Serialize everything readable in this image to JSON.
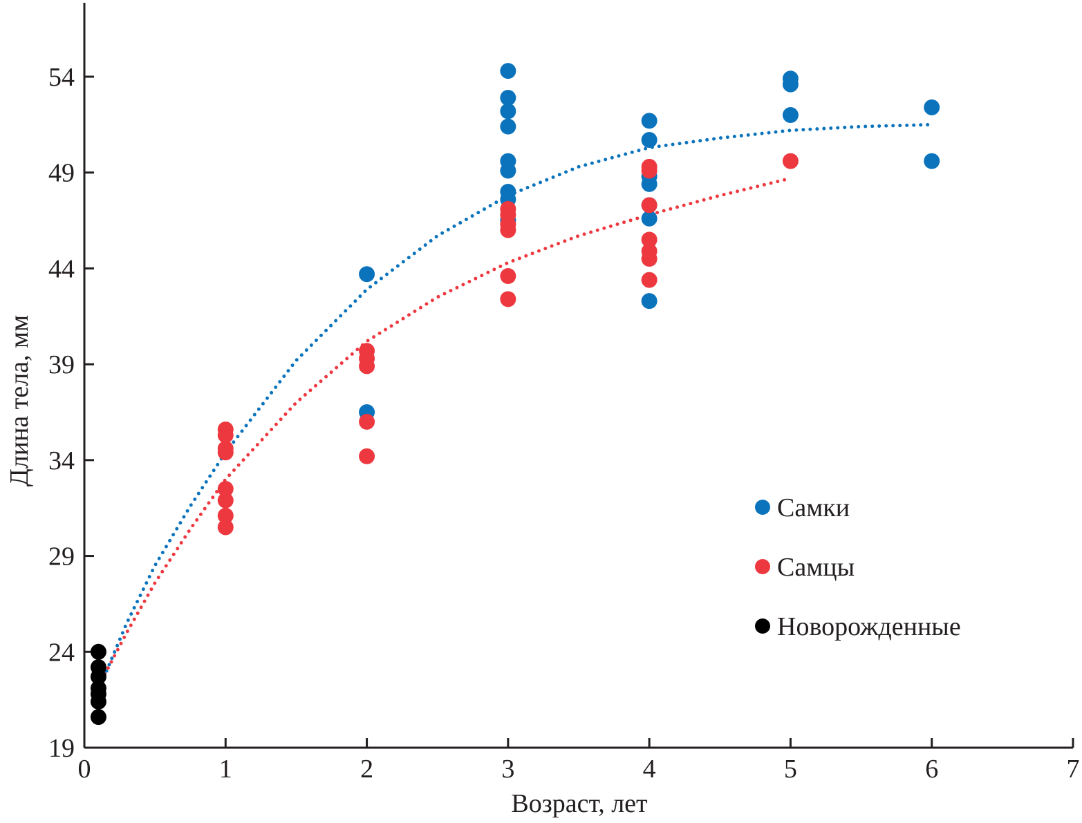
{
  "chart_data": {
    "type": "scatter",
    "title": "",
    "xlabel": "Возраст, лет",
    "ylabel": "Длина тела, мм",
    "xlim": [
      0,
      7
    ],
    "ylim": [
      19,
      57.5
    ],
    "xticks": [
      "0",
      "1",
      "2",
      "3",
      "4",
      "5",
      "6",
      "7"
    ],
    "yticks": [
      "19",
      "24",
      "29",
      "34",
      "39",
      "44",
      "49",
      "54"
    ],
    "grid": false,
    "legend_placement": "right-center",
    "series": [
      {
        "name": "Самки",
        "color": "#0a73bc",
        "points": [
          [
            2,
            43.7
          ],
          [
            2,
            36.5
          ],
          [
            3,
            54.3
          ],
          [
            3,
            52.9
          ],
          [
            3,
            52.2
          ],
          [
            3,
            51.4
          ],
          [
            3,
            49.6
          ],
          [
            3,
            49.1
          ],
          [
            3,
            48.0
          ],
          [
            3,
            47.6
          ],
          [
            3,
            46.5
          ],
          [
            4,
            51.7
          ],
          [
            4,
            50.7
          ],
          [
            4,
            48.8
          ],
          [
            4,
            48.4
          ],
          [
            4,
            47.3
          ],
          [
            4,
            46.6
          ],
          [
            4,
            42.3
          ],
          [
            5,
            53.9
          ],
          [
            5,
            53.6
          ],
          [
            5,
            52.0
          ],
          [
            6,
            52.4
          ],
          [
            6,
            49.6
          ]
        ],
        "trend": [
          [
            0.1,
            22.0
          ],
          [
            0.3,
            25.5
          ],
          [
            0.5,
            28.5
          ],
          [
            0.75,
            31.6
          ],
          [
            1,
            34.4
          ],
          [
            1.5,
            39.2
          ],
          [
            2,
            42.9
          ],
          [
            2.5,
            45.7
          ],
          [
            3,
            47.8
          ],
          [
            3.5,
            49.3
          ],
          [
            4,
            50.3
          ],
          [
            4.5,
            50.8
          ],
          [
            5,
            51.2
          ],
          [
            5.5,
            51.4
          ],
          [
            6,
            51.5
          ]
        ]
      },
      {
        "name": "Самцы",
        "color": "#ee3840",
        "points": [
          [
            1,
            35.6
          ],
          [
            1,
            35.3
          ],
          [
            1,
            34.6
          ],
          [
            1,
            34.4
          ],
          [
            1,
            32.5
          ],
          [
            1,
            31.9
          ],
          [
            1,
            31.1
          ],
          [
            1,
            30.5
          ],
          [
            2,
            39.7
          ],
          [
            2,
            39.3
          ],
          [
            2,
            38.9
          ],
          [
            2,
            36.0
          ],
          [
            2,
            34.2
          ],
          [
            3,
            47.1
          ],
          [
            3,
            46.8
          ],
          [
            3,
            46.3
          ],
          [
            3,
            46.0
          ],
          [
            3,
            43.6
          ],
          [
            3,
            42.4
          ],
          [
            4,
            49.3
          ],
          [
            4,
            49.1
          ],
          [
            4,
            47.3
          ],
          [
            4,
            45.5
          ],
          [
            4,
            44.9
          ],
          [
            4,
            44.5
          ],
          [
            4,
            43.4
          ],
          [
            5,
            49.6
          ]
        ],
        "trend": [
          [
            0.1,
            22.2
          ],
          [
            0.3,
            25.0
          ],
          [
            0.5,
            27.6
          ],
          [
            0.75,
            30.4
          ],
          [
            1,
            33.0
          ],
          [
            1.5,
            37.0
          ],
          [
            2,
            40.2
          ],
          [
            2.5,
            42.5
          ],
          [
            3,
            44.3
          ],
          [
            3.5,
            45.7
          ],
          [
            4,
            46.8
          ],
          [
            4.5,
            47.8
          ],
          [
            5,
            48.7
          ]
        ]
      },
      {
        "name": "Новорожденные",
        "color": "#000000",
        "points": [
          [
            0.1,
            24.0
          ],
          [
            0.1,
            23.2
          ],
          [
            0.1,
            22.7
          ],
          [
            0.1,
            22.1
          ],
          [
            0.1,
            21.8
          ],
          [
            0.1,
            21.4
          ],
          [
            0.1,
            20.6
          ]
        ]
      }
    ]
  }
}
